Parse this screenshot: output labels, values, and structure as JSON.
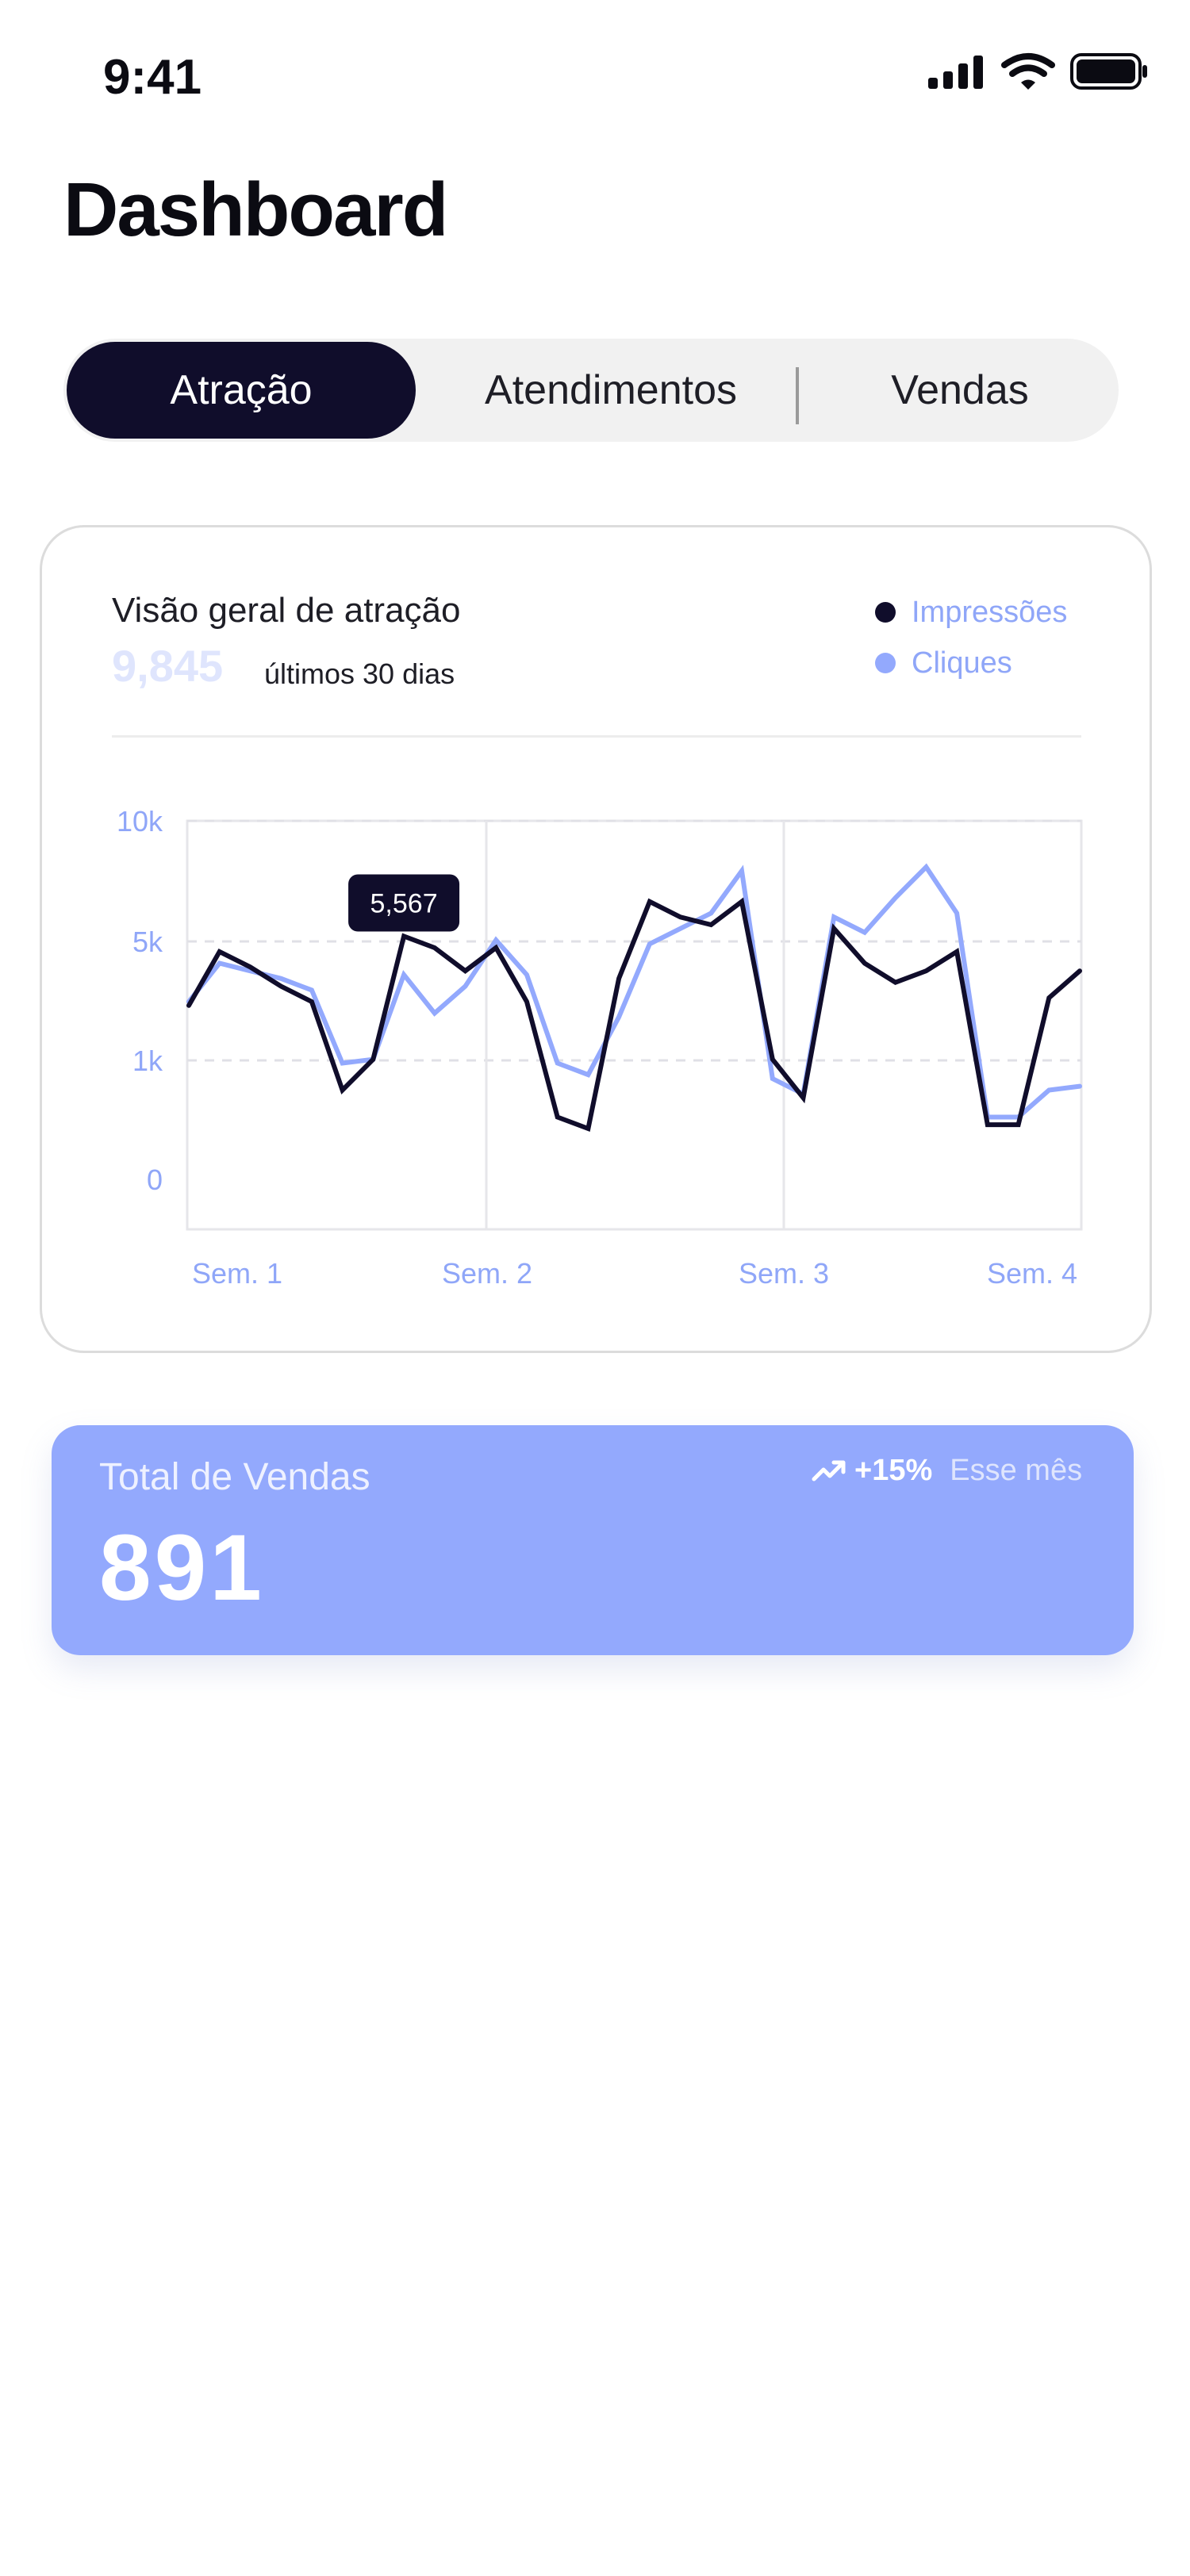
{
  "status_bar": {
    "time": "9:41"
  },
  "header": {
    "title": "Dashboard"
  },
  "tabs": [
    {
      "label": "Atração",
      "active": true
    },
    {
      "label": "Atendimentos",
      "active": false
    },
    {
      "label": "Vendas",
      "active": false
    }
  ],
  "chart_card": {
    "title": "Visão geral de atração",
    "total": "9,845",
    "period": "últimos 30 dias",
    "tooltip": "5,567"
  },
  "chart_data": {
    "type": "line",
    "x_labels": [
      "Sem. 1",
      "Sem. 2",
      "Sem. 3",
      "Sem. 4"
    ],
    "y_tick_labels": [
      "10k",
      "5k",
      "1k",
      "0"
    ],
    "grid": true,
    "legend_position": "top-right",
    "series": [
      {
        "name": "Impressões",
        "color": "#100d2b",
        "values": [
          5.2,
          6.6,
          6.2,
          5.7,
          5.3,
          3.0,
          3.8,
          7.0,
          6.7,
          6.1,
          6.7,
          5.3,
          2.3,
          2.0,
          5.9,
          7.9,
          7.5,
          7.3,
          7.9,
          3.8,
          2.8,
          7.2,
          6.3,
          5.8,
          6.1,
          6.6,
          2.1,
          2.1,
          5.4,
          6.1
        ],
        "tooltip_index": 7
      },
      {
        "name": "Cliques",
        "color": "#93a9fd",
        "values": [
          5.3,
          6.3,
          6.1,
          5.9,
          5.6,
          3.7,
          3.8,
          6.0,
          5.0,
          5.7,
          6.9,
          6.0,
          3.7,
          3.4,
          4.9,
          6.8,
          7.2,
          7.6,
          8.7,
          3.3,
          2.9,
          7.5,
          7.1,
          8.0,
          8.8,
          7.6,
          2.3,
          2.3,
          3.0,
          3.1
        ]
      }
    ]
  },
  "sales_card": {
    "label": "Total de Vendas",
    "value": "891",
    "trend": "+15%",
    "trend_period": "Esse mês"
  },
  "colors": {
    "primary_dark": "#100d2b",
    "accent_blue": "#93a9fd",
    "muted_blue": "#dfe5fd"
  }
}
